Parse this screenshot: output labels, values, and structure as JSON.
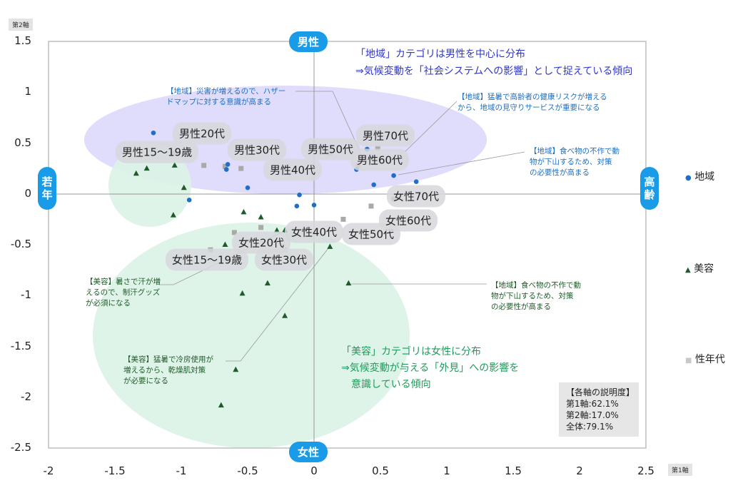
{
  "chart_data": {
    "type": "scatter",
    "title": "",
    "xlabel": "第1軸",
    "ylabel": "第2軸",
    "xlim": [
      -2,
      2.5
    ],
    "ylim": [
      -2.5,
      1.5
    ],
    "xticks": [
      "-2",
      "-1.5",
      "-1",
      "-0.5",
      "0",
      "0.5",
      "1",
      "1.5",
      "2",
      "2.5"
    ],
    "yticks": [
      "1.5",
      "1",
      "0.5",
      "0",
      "-0.5",
      "-1",
      "-1.5",
      "-2",
      "-2.5"
    ],
    "grid": false,
    "legend_placement": "right",
    "axis_poles": {
      "top": "男性",
      "bottom": "女性",
      "left": "若年",
      "right": "高齢"
    },
    "series": [
      {
        "name": "地域",
        "marker": "circle",
        "color": "#1f6fc8",
        "points": [
          [
            -1.21,
            0.6
          ],
          [
            -0.65,
            0.29
          ],
          [
            -0.66,
            0.24
          ],
          [
            -0.5,
            0.06
          ],
          [
            -0.94,
            -0.06
          ],
          [
            -0.11,
            -0.01
          ],
          [
            -0.13,
            -0.12
          ],
          [
            0.0,
            -0.11
          ],
          [
            0.32,
            0.24
          ],
          [
            0.4,
            0.44
          ],
          [
            0.6,
            0.18
          ],
          [
            0.45,
            0.09
          ],
          [
            0.77,
            0.12
          ]
        ]
      },
      {
        "name": "美容",
        "marker": "triangle",
        "color": "#1e5a2a",
        "points": [
          [
            -1.34,
            0.2
          ],
          [
            -1.26,
            0.25
          ],
          [
            -1.05,
            0.28
          ],
          [
            -0.98,
            0.06
          ],
          [
            -1.06,
            -0.21
          ],
          [
            -0.53,
            -0.18
          ],
          [
            -0.4,
            -0.23
          ],
          [
            -0.67,
            -0.5
          ],
          [
            -0.28,
            -0.36
          ],
          [
            -0.22,
            -0.36
          ],
          [
            0.12,
            -0.52
          ],
          [
            -0.35,
            -0.88
          ],
          [
            -0.54,
            -0.98
          ],
          [
            0.26,
            -0.88
          ],
          [
            -0.22,
            -1.2
          ],
          [
            -0.59,
            -1.73
          ],
          [
            -0.7,
            -2.08
          ]
        ]
      },
      {
        "name": "性年代",
        "marker": "square",
        "color": "#a9a9a9",
        "points": [
          [
            -1.05,
            0.4
          ],
          [
            -0.83,
            0.28
          ],
          [
            -0.55,
            0.25
          ],
          [
            -0.67,
            0.27
          ],
          [
            0.12,
            0.4
          ],
          [
            0.33,
            0.28
          ],
          [
            0.48,
            0.45
          ],
          [
            -0.78,
            -0.55
          ],
          [
            -0.6,
            -0.38
          ],
          [
            -0.22,
            -0.55
          ],
          [
            -0.4,
            -0.33
          ],
          [
            0.22,
            -0.25
          ],
          [
            0.43,
            -0.12
          ],
          [
            0.6,
            -0.05
          ]
        ],
        "labels": [
          "男性15〜19歳",
          "男性20代",
          "男性30代",
          "男性40代",
          "男性50代",
          "男性60代",
          "男性70代",
          "女性15〜19歳",
          "女性20代",
          "女性30代",
          "女性40代",
          "女性50代",
          "女性60代",
          "女性70代"
        ]
      }
    ],
    "annotations": {
      "area_note": [
        "「地域」カテゴリは男性を中心に分布",
        "⇒気候変動を「社会システムへの影響」として捉えている傾向"
      ],
      "beauty_note": [
        "「美容」カテゴリは女性に分布",
        "⇒気候変動が与える「外見」への影響を",
        "意識している傾向"
      ],
      "callouts": [
        [
          "【地域】災害が増えるので、ハザー",
          "ドマップに対する意識が高まる"
        ],
        [
          "【地域】猛暑で高齢者の健康リスクが増える",
          "から、地域の見守りサービスが重要になる"
        ],
        [
          "【地域】食べ物の不作で動",
          "物が下山するため、対策",
          "の必要性が高まる"
        ],
        [
          "【美容】暑さで汗が増",
          "えるので、制汗グッズ",
          "が必須になる"
        ],
        [
          "【美容】猛暑で冷房使用が",
          "増えるから、乾燥肌対策",
          "が必要になる"
        ],
        [
          "【地域】食べ物の不作で動",
          "物が下山するため、対策",
          "の必要性が高まる"
        ]
      ],
      "explained": [
        "【各軸の説明度】",
        "第1軸:62.1%",
        "第2軸:17.0%",
        "全体:79.1%"
      ]
    }
  }
}
